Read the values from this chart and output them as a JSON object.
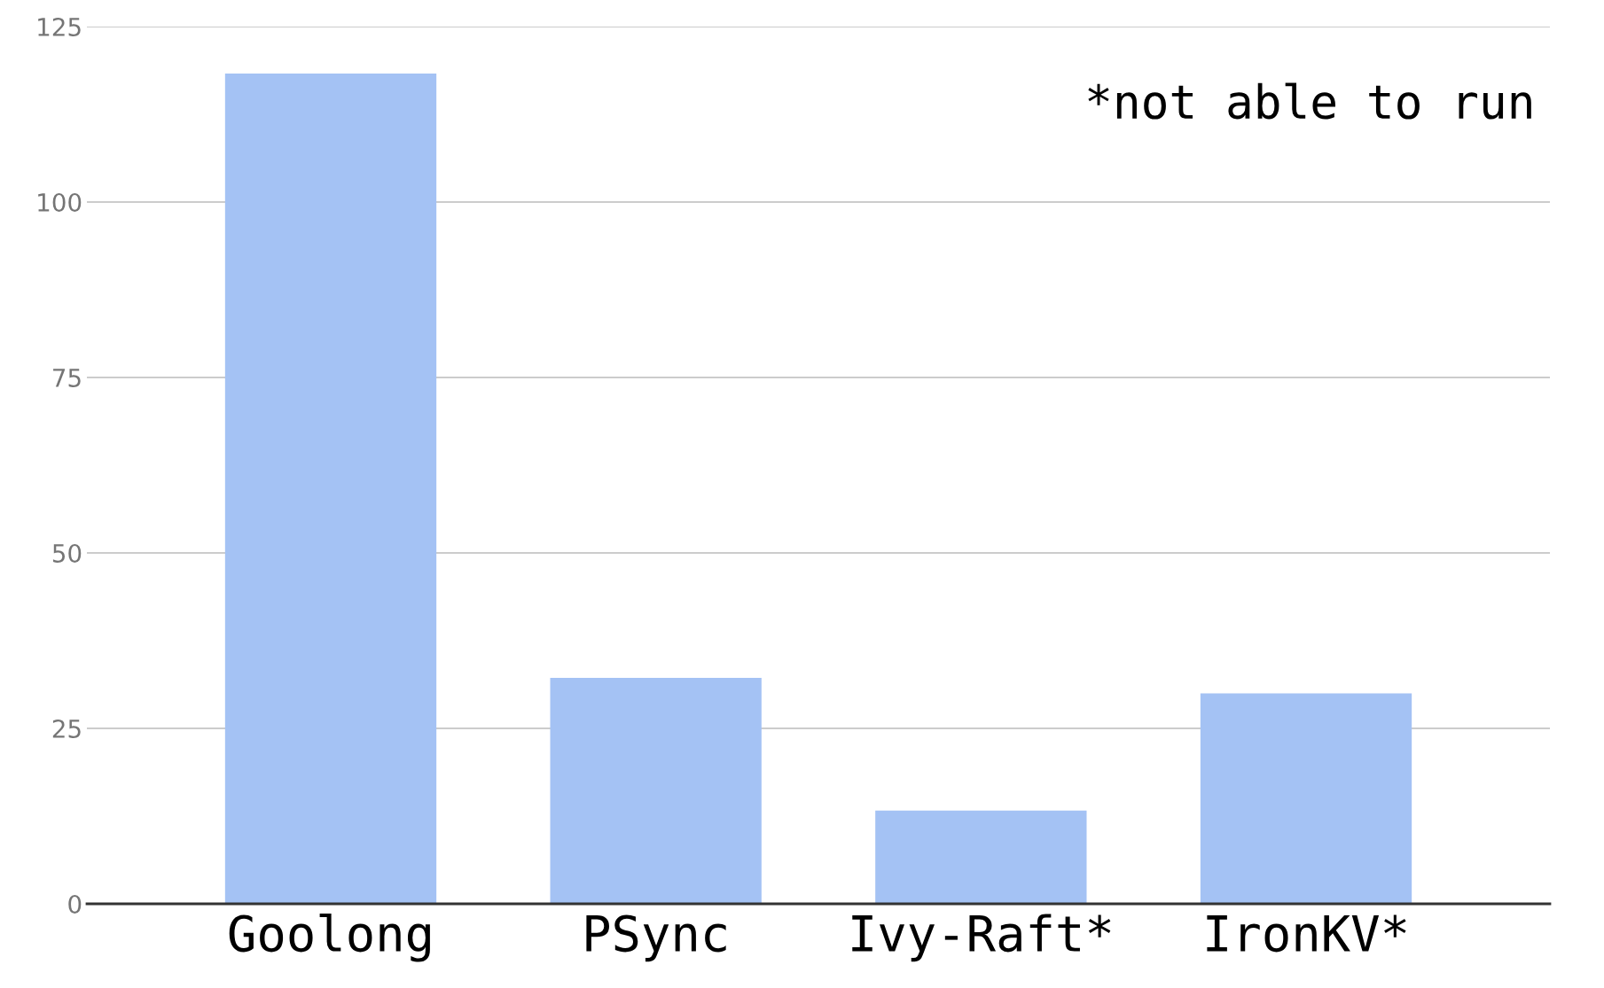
{
  "chart_data": {
    "type": "bar",
    "categories": [
      "Goolong",
      "PSync",
      "Ivy-Raft*",
      "IronKV*"
    ],
    "values": [
      118.3,
      32.2,
      13.3,
      30
    ],
    "color": "#a4c2f4",
    "ylim": [
      0,
      125
    ],
    "yticks": [
      0,
      25,
      50,
      75,
      100,
      125
    ],
    "grid": "y",
    "annotations": [
      "*not able to run"
    ]
  }
}
